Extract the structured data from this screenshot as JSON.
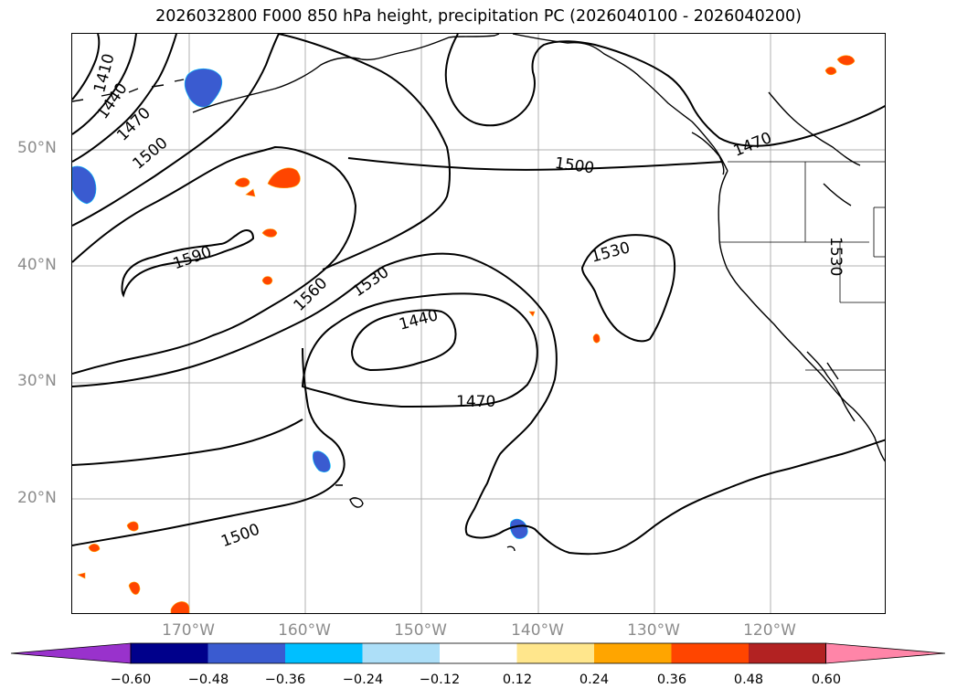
{
  "title": "2026032800 F000 850 hPa height, precipitation PC (2026040100 - 2026040200)",
  "map": {
    "latitude_labels": [
      "50°N",
      "40°N",
      "30°N",
      "20°N"
    ],
    "longitude_labels": [
      "170°W",
      "160°W",
      "150°W",
      "140°W",
      "130°W",
      "120°W"
    ],
    "contour_labels": [
      "1410",
      "1440",
      "1470",
      "1500",
      "1590",
      "1560",
      "1530",
      "1500",
      "1440",
      "1470",
      "1530",
      "1500",
      "1470",
      "1530"
    ]
  },
  "colorbar": {
    "colors": [
      "#9932CC",
      "#00008B",
      "#3A5BD0",
      "#00BFFF",
      "#ADDFF8",
      "#FFFFFF",
      "#FFE68C",
      "#FFA500",
      "#FF4500",
      "#B22222",
      "#FF85A8"
    ],
    "tick_labels": [
      "−0.60",
      "−0.48",
      "−0.36",
      "−0.24",
      "−0.12",
      "0.12",
      "0.24",
      "0.36",
      "0.48",
      "0.60"
    ]
  }
}
